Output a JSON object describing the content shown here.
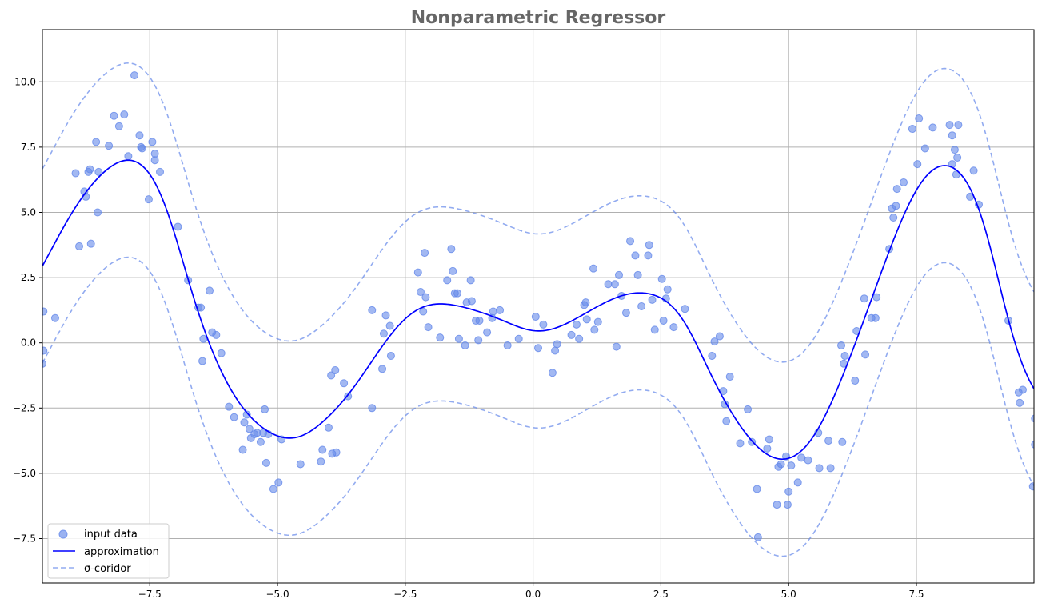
{
  "chart_data": {
    "type": "scatter",
    "title": "Nonparametric Regressor",
    "xlabel": "",
    "ylabel": "",
    "xlim": [
      -9.6,
      9.8
    ],
    "ylim": [
      -9.2,
      12.0
    ],
    "grid": true,
    "legend_position": "lower-left",
    "x_ticks": [
      -7.5,
      -5.0,
      -2.5,
      0.0,
      2.5,
      5.0,
      7.5
    ],
    "x_tick_labels": [
      "−7.5",
      "−5.0",
      "−2.5",
      "0.0",
      "2.5",
      "5.0",
      "7.5"
    ],
    "y_ticks": [
      -7.5,
      -5.0,
      -2.5,
      0.0,
      2.5,
      5.0,
      7.5,
      10.0
    ],
    "y_tick_labels": [
      "−7.5",
      "−5.0",
      "−2.5",
      "0.0",
      "2.5",
      "5.0",
      "7.5",
      "10.0"
    ],
    "series": [
      {
        "name": "input data",
        "kind": "scatter",
        "color": "#6488ea",
        "points": [
          [
            -9.58,
            1.2
          ],
          [
            -9.58,
            -0.3
          ],
          [
            -9.6,
            -0.8
          ],
          [
            -9.35,
            0.95
          ],
          [
            -8.95,
            6.5
          ],
          [
            -8.88,
            3.7
          ],
          [
            -8.78,
            5.8
          ],
          [
            -8.75,
            5.6
          ],
          [
            -8.7,
            6.55
          ],
          [
            -8.67,
            6.65
          ],
          [
            -8.65,
            3.8
          ],
          [
            -8.55,
            7.7
          ],
          [
            -8.52,
            5.0
          ],
          [
            -8.5,
            6.55
          ],
          [
            -8.3,
            7.55
          ],
          [
            -8.2,
            8.7
          ],
          [
            -8.1,
            8.3
          ],
          [
            -8.0,
            8.75
          ],
          [
            -7.92,
            7.15
          ],
          [
            -7.8,
            10.25
          ],
          [
            -7.7,
            7.95
          ],
          [
            -7.67,
            7.5
          ],
          [
            -7.65,
            7.45
          ],
          [
            -7.52,
            5.5
          ],
          [
            -7.45,
            7.7
          ],
          [
            -7.4,
            7.0
          ],
          [
            -7.4,
            7.25
          ],
          [
            -7.3,
            6.55
          ],
          [
            -6.95,
            4.45
          ],
          [
            -6.75,
            2.4
          ],
          [
            -6.55,
            1.35
          ],
          [
            -6.5,
            1.35
          ],
          [
            -6.47,
            -0.7
          ],
          [
            -6.45,
            0.15
          ],
          [
            -6.33,
            2.0
          ],
          [
            -6.28,
            0.4
          ],
          [
            -6.2,
            0.3
          ],
          [
            -6.1,
            -0.4
          ],
          [
            -5.95,
            -2.45
          ],
          [
            -5.85,
            -2.85
          ],
          [
            -5.68,
            -4.1
          ],
          [
            -5.65,
            -3.05
          ],
          [
            -5.6,
            -2.75
          ],
          [
            -5.55,
            -3.3
          ],
          [
            -5.52,
            -3.65
          ],
          [
            -5.45,
            -3.5
          ],
          [
            -5.4,
            -3.45
          ],
          [
            -5.33,
            -3.8
          ],
          [
            -5.28,
            -3.45
          ],
          [
            -5.25,
            -2.55
          ],
          [
            -5.22,
            -4.6
          ],
          [
            -5.18,
            -3.5
          ],
          [
            -5.08,
            -5.6
          ],
          [
            -4.98,
            -5.35
          ],
          [
            -4.92,
            -3.7
          ],
          [
            -4.55,
            -4.65
          ],
          [
            -4.15,
            -4.55
          ],
          [
            -4.12,
            -4.1
          ],
          [
            -4.0,
            -3.25
          ],
          [
            -3.95,
            -1.25
          ],
          [
            -3.93,
            -4.25
          ],
          [
            -3.87,
            -1.05
          ],
          [
            -3.85,
            -4.2
          ],
          [
            -3.7,
            -1.55
          ],
          [
            -3.62,
            -2.05
          ],
          [
            -3.15,
            1.25
          ],
          [
            -3.15,
            -2.5
          ],
          [
            -2.95,
            -1.0
          ],
          [
            -2.92,
            0.35
          ],
          [
            -2.88,
            1.05
          ],
          [
            -2.8,
            0.65
          ],
          [
            -2.78,
            -0.5
          ],
          [
            -2.25,
            2.7
          ],
          [
            -2.2,
            1.95
          ],
          [
            -2.15,
            1.2
          ],
          [
            -2.12,
            3.45
          ],
          [
            -2.1,
            1.75
          ],
          [
            -2.05,
            0.6
          ],
          [
            -1.82,
            0.2
          ],
          [
            -1.68,
            2.4
          ],
          [
            -1.6,
            3.6
          ],
          [
            -1.57,
            2.75
          ],
          [
            -1.53,
            1.9
          ],
          [
            -1.48,
            1.9
          ],
          [
            -1.45,
            0.15
          ],
          [
            -1.33,
            -0.1
          ],
          [
            -1.3,
            1.55
          ],
          [
            -1.22,
            2.4
          ],
          [
            -1.2,
            1.6
          ],
          [
            -1.12,
            0.85
          ],
          [
            -1.07,
            0.1
          ],
          [
            -1.05,
            0.85
          ],
          [
            -0.9,
            0.4
          ],
          [
            -0.8,
            0.95
          ],
          [
            -0.78,
            1.2
          ],
          [
            -0.65,
            1.25
          ],
          [
            -0.5,
            -0.1
          ],
          [
            -0.28,
            0.15
          ],
          [
            0.05,
            1.0
          ],
          [
            0.1,
            -0.2
          ],
          [
            0.2,
            0.7
          ],
          [
            0.38,
            -1.15
          ],
          [
            0.43,
            -0.3
          ],
          [
            0.47,
            -0.05
          ],
          [
            0.75,
            0.3
          ],
          [
            0.85,
            0.7
          ],
          [
            0.9,
            0.15
          ],
          [
            1.0,
            1.45
          ],
          [
            1.03,
            1.55
          ],
          [
            1.05,
            0.9
          ],
          [
            1.18,
            2.85
          ],
          [
            1.2,
            0.5
          ],
          [
            1.27,
            0.8
          ],
          [
            1.47,
            2.25
          ],
          [
            1.6,
            2.25
          ],
          [
            1.63,
            -0.15
          ],
          [
            1.68,
            2.6
          ],
          [
            1.73,
            1.8
          ],
          [
            1.82,
            1.15
          ],
          [
            1.9,
            3.9
          ],
          [
            2.0,
            3.35
          ],
          [
            2.05,
            2.6
          ],
          [
            2.12,
            1.4
          ],
          [
            2.25,
            3.35
          ],
          [
            2.27,
            3.75
          ],
          [
            2.33,
            1.65
          ],
          [
            2.38,
            0.5
          ],
          [
            2.52,
            2.45
          ],
          [
            2.55,
            0.85
          ],
          [
            2.6,
            1.7
          ],
          [
            2.63,
            2.05
          ],
          [
            2.75,
            0.6
          ],
          [
            2.97,
            1.3
          ],
          [
            3.5,
            -0.5
          ],
          [
            3.55,
            0.05
          ],
          [
            3.65,
            0.25
          ],
          [
            3.72,
            -1.85
          ],
          [
            3.75,
            -2.35
          ],
          [
            3.78,
            -3.0
          ],
          [
            3.85,
            -1.3
          ],
          [
            4.05,
            -3.85
          ],
          [
            4.2,
            -2.55
          ],
          [
            4.28,
            -3.8
          ],
          [
            4.38,
            -5.6
          ],
          [
            4.4,
            -7.45
          ],
          [
            4.58,
            -4.05
          ],
          [
            4.62,
            -3.7
          ],
          [
            4.77,
            -6.2
          ],
          [
            4.8,
            -4.75
          ],
          [
            4.85,
            -4.65
          ],
          [
            4.95,
            -4.35
          ],
          [
            4.98,
            -6.2
          ],
          [
            5.0,
            -5.7
          ],
          [
            5.05,
            -4.7
          ],
          [
            5.18,
            -5.35
          ],
          [
            5.25,
            -4.4
          ],
          [
            5.38,
            -4.5
          ],
          [
            5.58,
            -3.45
          ],
          [
            5.6,
            -4.8
          ],
          [
            5.78,
            -3.75
          ],
          [
            5.82,
            -4.8
          ],
          [
            6.03,
            -0.1
          ],
          [
            6.05,
            -3.8
          ],
          [
            6.08,
            -0.8
          ],
          [
            6.1,
            -0.5
          ],
          [
            6.3,
            -1.45
          ],
          [
            6.33,
            0.45
          ],
          [
            6.48,
            1.7
          ],
          [
            6.5,
            -0.45
          ],
          [
            6.62,
            0.95
          ],
          [
            6.7,
            0.95
          ],
          [
            6.72,
            1.75
          ],
          [
            6.97,
            3.6
          ],
          [
            7.02,
            5.15
          ],
          [
            7.05,
            4.8
          ],
          [
            7.1,
            5.25
          ],
          [
            7.12,
            5.9
          ],
          [
            7.25,
            6.15
          ],
          [
            7.42,
            8.2
          ],
          [
            7.52,
            6.85
          ],
          [
            7.55,
            8.6
          ],
          [
            7.67,
            7.45
          ],
          [
            7.82,
            8.25
          ],
          [
            8.15,
            8.35
          ],
          [
            8.2,
            6.85
          ],
          [
            8.2,
            7.95
          ],
          [
            8.25,
            7.4
          ],
          [
            8.28,
            6.45
          ],
          [
            8.3,
            7.1
          ],
          [
            8.32,
            8.35
          ],
          [
            8.55,
            5.6
          ],
          [
            8.62,
            6.6
          ],
          [
            8.72,
            5.3
          ],
          [
            9.3,
            0.85
          ],
          [
            9.5,
            -1.9
          ],
          [
            9.52,
            -2.3
          ],
          [
            9.58,
            -1.8
          ],
          [
            9.78,
            -5.5
          ],
          [
            9.82,
            -2.9
          ],
          [
            9.82,
            -3.9
          ]
        ]
      },
      {
        "name": "approximation",
        "kind": "line",
        "color": "#0000ff",
        "style": "solid"
      },
      {
        "name": "σ-coridor",
        "kind": "line",
        "color": "#6488ea",
        "style": "dashed"
      }
    ]
  }
}
